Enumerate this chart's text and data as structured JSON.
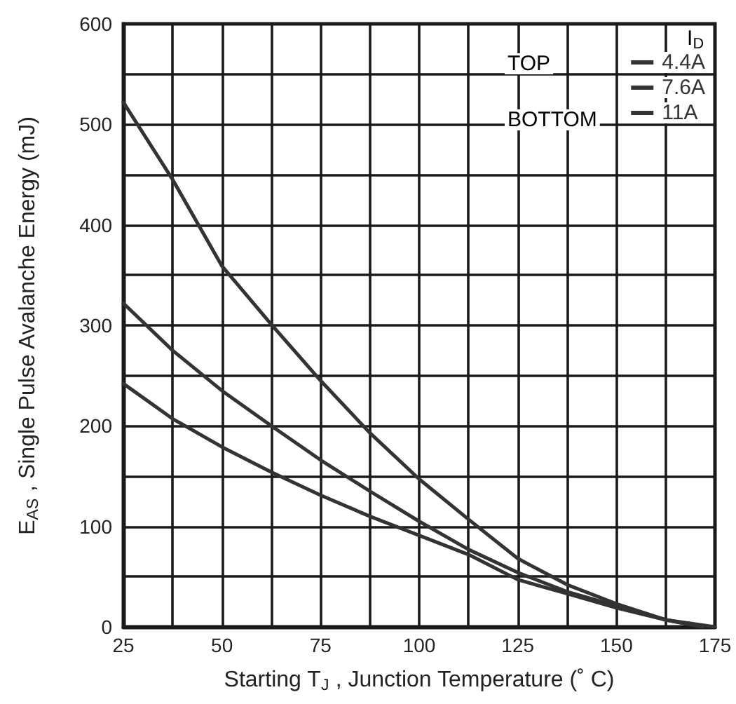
{
  "chart_data": {
    "type": "line",
    "xlabel": "Starting T$_{J}$ , Junction Temperature (˚ C)",
    "ylabel": "E$_{AS}$ , Single Pulse Avalanche Energy (mJ)",
    "legend_title": "I$_{D}$",
    "annotations": [
      "TOP",
      "BOTTOM"
    ],
    "x": [
      25,
      37.5,
      50,
      62.5,
      75,
      87.5,
      100,
      112.5,
      125,
      137.5,
      150,
      162.5,
      175
    ],
    "series": [
      {
        "name": "4.4A",
        "color": "#333333",
        "values": [
          522,
          445,
          359,
          301,
          245,
          193,
          147,
          107,
          68,
          42,
          23,
          7,
          0
        ]
      },
      {
        "name": "7.6A",
        "color": "#333333",
        "x": [
          25,
          37.5,
          50,
          62.5,
          75,
          87.5,
          100,
          112.5,
          125,
          137.5,
          150,
          162.5,
          172
        ],
        "values": [
          322,
          275,
          235,
          200,
          166,
          135,
          105,
          77,
          54,
          35,
          21,
          7,
          0
        ]
      },
      {
        "name": "11A",
        "color": "#333333",
        "x": [
          25,
          37.5,
          50,
          62.5,
          75,
          87.5,
          100,
          112.5,
          125,
          137.5,
          150,
          162.5,
          172
        ],
        "values": [
          242,
          207,
          179,
          154,
          131,
          110,
          91,
          72,
          47,
          33,
          19,
          7,
          0
        ]
      }
    ],
    "xlim": [
      25,
      175
    ],
    "xticks": [
      25,
      50,
      75,
      100,
      125,
      150,
      175
    ],
    "ylim": [
      0,
      600
    ],
    "yticks": [
      0,
      100,
      200,
      300,
      400,
      500,
      600
    ],
    "grid": true,
    "legend": "top right",
    "marker": "none",
    "line_style": "solid"
  }
}
